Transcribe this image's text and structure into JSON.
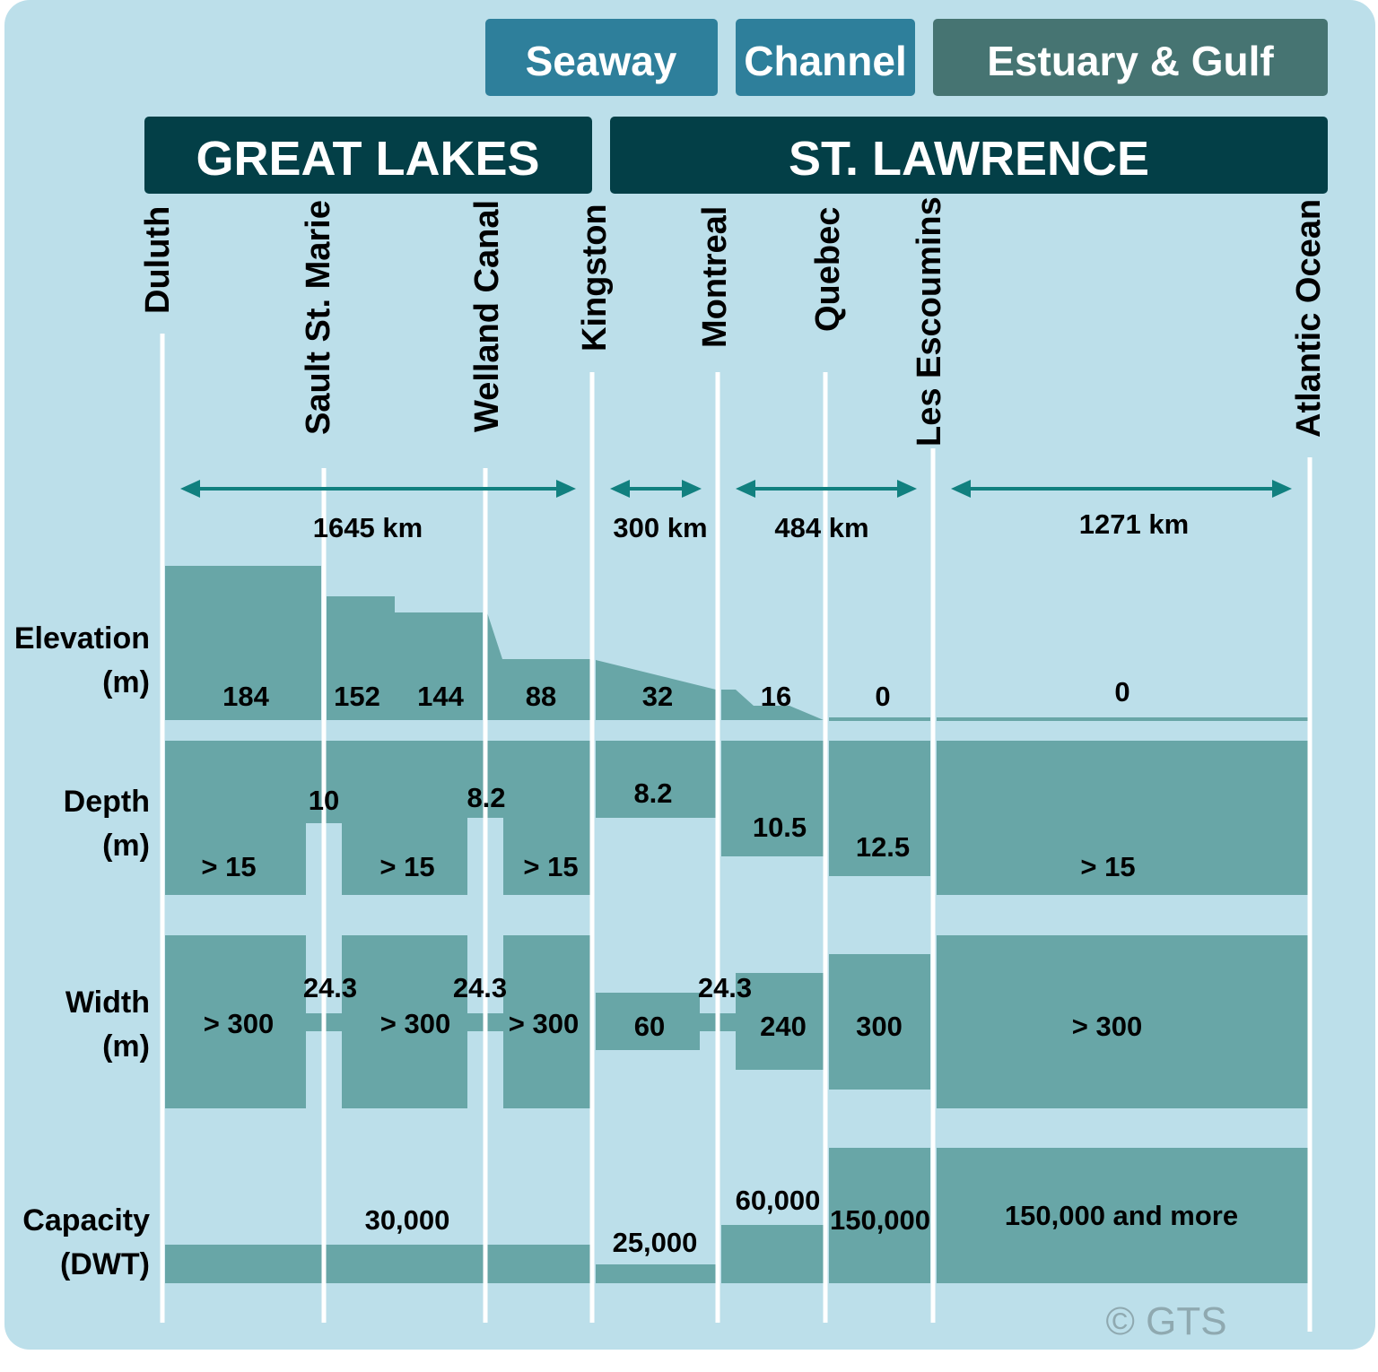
{
  "colors": {
    "background": "#bcdfea",
    "bar": "#68a6a7",
    "seaway": "#2e7f9b",
    "channel": "#2e7f9b",
    "estuary": "#467472",
    "region": "#033f47",
    "arrow": "#11807f"
  },
  "segments": {
    "seaway": "Seaway",
    "channel": "Channel",
    "estuary": "Estuary & Gulf"
  },
  "regions": {
    "great_lakes": "GREAT LAKES",
    "st_lawrence": "ST. LAWRENCE"
  },
  "locations": [
    "Duluth",
    "Sault St. Marie",
    "Welland Canal",
    "Kingston",
    "Montreal",
    "Quebec",
    "Les Escoumins",
    "Atlantic Ocean"
  ],
  "distances": [
    "1645 km",
    "300 km",
    "484 km",
    "1271 km"
  ],
  "rows": {
    "elevation": {
      "label1": "Elevation",
      "label2": "(m)",
      "values": [
        "184",
        "152",
        "144",
        "88",
        "32",
        "16",
        "0",
        "0"
      ]
    },
    "depth": {
      "label1": "Depth",
      "label2": "(m)",
      "values": [
        "> 15",
        "10",
        "> 15",
        "8.2",
        "> 15",
        "8.2",
        "10.5",
        "12.5",
        "> 15"
      ]
    },
    "width": {
      "label1": "Width",
      "label2": "(m)",
      "values": [
        "> 300",
        "24.3",
        "> 300",
        "24.3",
        "> 300",
        "60",
        "24.3",
        "240",
        "300",
        "> 300"
      ]
    },
    "capacity": {
      "label1": "Capacity",
      "label2": "(DWT)",
      "values": [
        "30,000",
        "25,000",
        "60,000",
        "150,000",
        "150,000 and more"
      ]
    }
  },
  "copyright": "© GTS"
}
